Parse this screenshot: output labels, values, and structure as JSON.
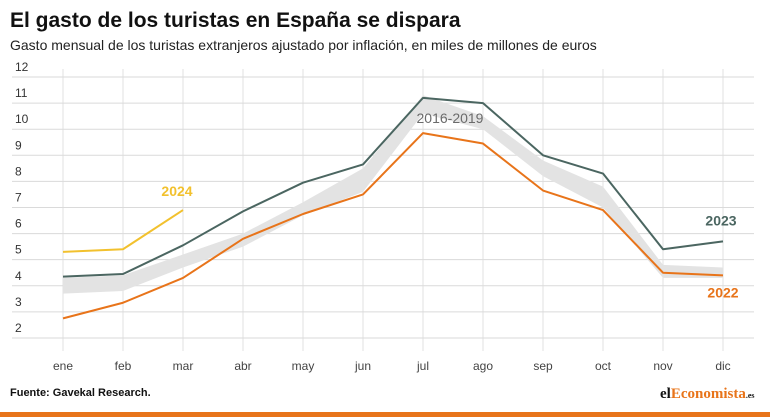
{
  "chart_data": {
    "type": "line",
    "title": "El gasto de los turistas en España se dispara",
    "subtitle": "Gasto mensual de los turistas extranjeros ajustado por inflación, en miles de millones de euros",
    "categories": [
      "ene",
      "feb",
      "mar",
      "abr",
      "may",
      "jun",
      "jul",
      "ago",
      "sep",
      "oct",
      "nov",
      "dic"
    ],
    "band": {
      "name": "2016-2019",
      "color": "#e3e3e3",
      "label_color": "#6b6b6b",
      "lower": [
        3.7,
        3.8,
        4.7,
        5.5,
        6.7,
        7.6,
        10.6,
        10.0,
        8.2,
        7.0,
        4.3,
        4.3
      ],
      "upper": [
        4.3,
        4.4,
        5.2,
        6.0,
        7.2,
        8.5,
        11.3,
        10.5,
        8.8,
        7.8,
        4.8,
        4.7
      ]
    },
    "series": [
      {
        "name": "2023",
        "color": "#4b6661",
        "values": [
          4.35,
          4.45,
          5.55,
          6.85,
          7.95,
          8.65,
          11.2,
          11.0,
          9.0,
          8.3,
          5.4,
          5.7
        ]
      },
      {
        "name": "2022",
        "color": "#e8741a",
        "values": [
          2.75,
          3.35,
          4.3,
          5.8,
          6.75,
          7.5,
          9.85,
          9.45,
          7.65,
          6.9,
          4.5,
          4.4
        ]
      },
      {
        "name": "2024",
        "color": "#f2c12e",
        "values": [
          5.3,
          5.4,
          6.9,
          null,
          null,
          null,
          null,
          null,
          null,
          null,
          null,
          null
        ]
      }
    ],
    "ylim": [
      1.5,
      12
    ],
    "yticks": [
      2,
      3,
      4,
      5,
      6,
      7,
      8,
      9,
      10,
      11,
      12
    ],
    "grid": true,
    "source": "Fuente: Gavekal Research.",
    "logo": {
      "a": "el",
      "b": "Economista",
      "c": ".es"
    }
  }
}
